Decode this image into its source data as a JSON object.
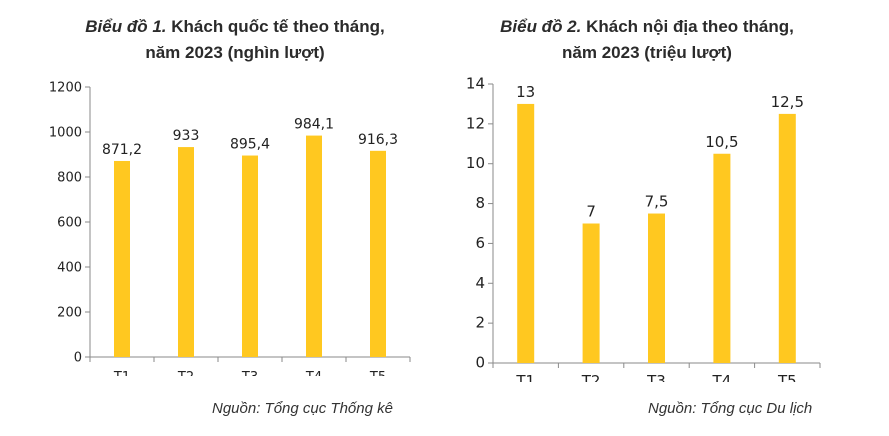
{
  "chart_data": [
    {
      "type": "bar",
      "title_lead": "Biểu đồ 1.",
      "title_rest": "Khách quốc tế theo tháng,",
      "title_line2": "năm 2023 (nghìn lượt)",
      "categories": [
        "T1",
        "T2",
        "T3",
        "T4",
        "T5"
      ],
      "values": [
        871.2,
        933,
        895.4,
        984.1,
        916.3
      ],
      "data_labels": [
        "871,2",
        "933",
        "895,4",
        "984,1",
        "916,3"
      ],
      "yticks": [
        "0",
        "200",
        "400",
        "600",
        "800",
        "1000",
        "1200"
      ],
      "ylim": [
        0,
        1200
      ],
      "source": "Nguồn: Tổng cục Thống kê",
      "bar_color": "#FFC820",
      "grid": false
    },
    {
      "type": "bar",
      "title_lead": "Biểu đồ 2.",
      "title_rest": "Khách nội địa theo tháng,",
      "title_line2": "năm 2023 (triệu lượt)",
      "categories": [
        "T1",
        "T2",
        "T3",
        "T4",
        "T5"
      ],
      "values": [
        13,
        7,
        7.5,
        10.5,
        12.5
      ],
      "data_labels": [
        "13",
        "7",
        "7,5",
        "10,5",
        "12,5"
      ],
      "yticks": [
        "0",
        "2",
        "4",
        "6",
        "8",
        "10",
        "12",
        "14"
      ],
      "ylim": [
        0,
        14
      ],
      "source": "Nguồn: Tổng cục Du lịch",
      "bar_color": "#FFC820",
      "grid": false
    }
  ]
}
